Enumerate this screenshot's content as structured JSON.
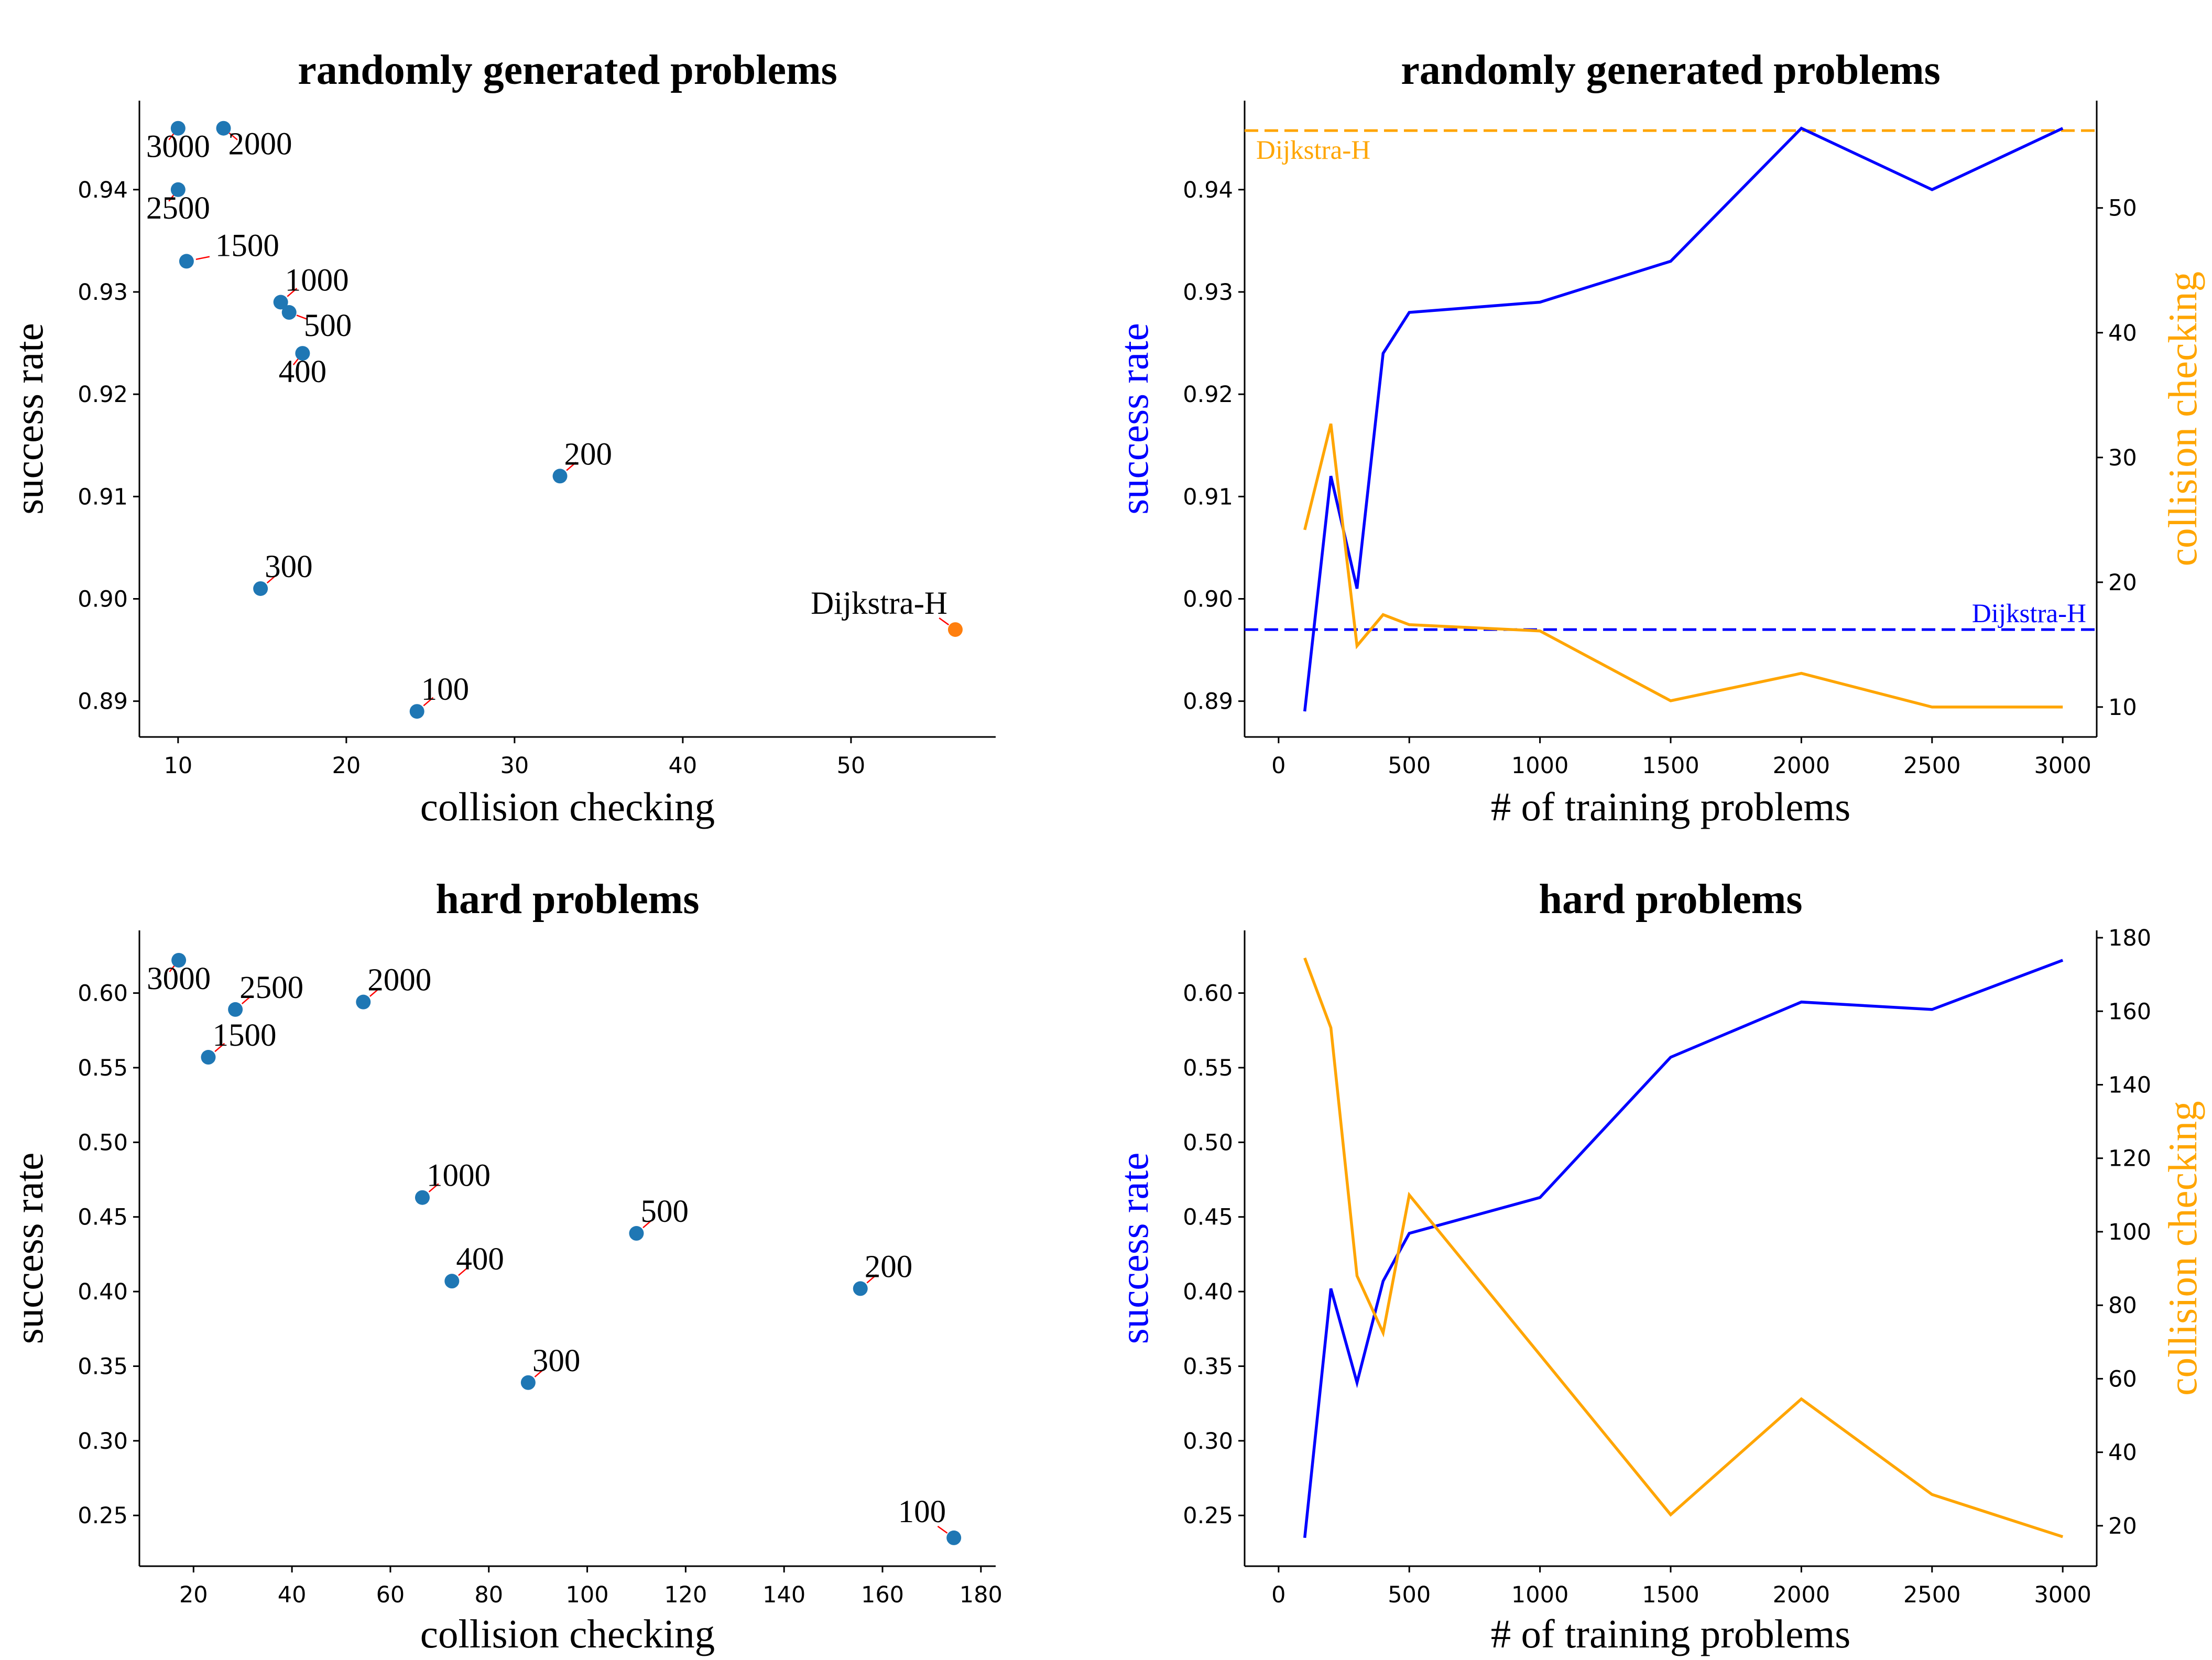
{
  "colors": {
    "point": "#1f77b4",
    "highlight": "#ff7f0e",
    "success_line": "#0000ff",
    "collision_line": "#ffa500",
    "arrow": "#ff0000"
  },
  "chart_data": [
    {
      "type": "scatter",
      "title": "randomly generated problems",
      "xlabel": "collision checking",
      "ylabel": "success rate",
      "xlim": [
        7.7,
        58.6
      ],
      "ylim": [
        0.8865,
        0.9487
      ],
      "xticks": [
        "10",
        "20",
        "30",
        "40",
        "50"
      ],
      "xtick_values": [
        10,
        20,
        30,
        40,
        50
      ],
      "yticks": [
        "0.89",
        "0.90",
        "0.91",
        "0.92",
        "0.93",
        "0.94"
      ],
      "ytick_values": [
        0.89,
        0.9,
        0.91,
        0.92,
        0.93,
        0.94
      ],
      "points": [
        {
          "label": "3000",
          "x": 10.0,
          "y": 0.946,
          "pos": "below-left"
        },
        {
          "label": "2000",
          "x": 12.7,
          "y": 0.946,
          "pos": "below-right"
        },
        {
          "label": "2500",
          "x": 10.0,
          "y": 0.94,
          "pos": "below-left"
        },
        {
          "label": "1500",
          "x": 10.5,
          "y": 0.933,
          "pos": "right"
        },
        {
          "label": "1000",
          "x": 16.1,
          "y": 0.929,
          "pos": "upper-right"
        },
        {
          "label": "500",
          "x": 16.6,
          "y": 0.928,
          "pos": "lower-right"
        },
        {
          "label": "400",
          "x": 17.4,
          "y": 0.924,
          "pos": "below-left"
        },
        {
          "label": "200",
          "x": 32.7,
          "y": 0.912,
          "pos": "upper-right"
        },
        {
          "label": "300",
          "x": 14.9,
          "y": 0.901,
          "pos": "upper-right"
        },
        {
          "label": "100",
          "x": 24.2,
          "y": 0.889,
          "pos": "upper-right"
        },
        {
          "label": "Dijkstra-H",
          "x": 56.2,
          "y": 0.897,
          "pos": "upper-left",
          "highlight": true
        }
      ]
    },
    {
      "type": "line",
      "title": "randomly generated problems",
      "xlabel": "# of training problems",
      "ylabel": "success rate",
      "y2label": "collision checking",
      "xlim": [
        -130,
        3130
      ],
      "ylim": [
        0.8865,
        0.9487
      ],
      "y2lim": [
        7.6,
        58.6
      ],
      "xticks": [
        "0",
        "500",
        "1000",
        "1500",
        "2000",
        "2500",
        "3000"
      ],
      "xtick_values": [
        0,
        500,
        1000,
        1500,
        2000,
        2500,
        3000
      ],
      "yticks": [
        "0.89",
        "0.90",
        "0.91",
        "0.92",
        "0.93",
        "0.94"
      ],
      "ytick_values": [
        0.89,
        0.9,
        0.91,
        0.92,
        0.93,
        0.94
      ],
      "y2ticks": [
        "10",
        "20",
        "30",
        "40",
        "50"
      ],
      "y2tick_values": [
        10,
        20,
        30,
        40,
        50
      ],
      "x": [
        100,
        200,
        300,
        400,
        500,
        1000,
        1500,
        2000,
        2500,
        3000
      ],
      "series": [
        {
          "name": "success rate",
          "axis": "left",
          "color": "#0000ff",
          "values": [
            0.889,
            0.912,
            0.901,
            0.924,
            0.928,
            0.929,
            0.933,
            0.946,
            0.94,
            0.946
          ]
        },
        {
          "name": "collision checking",
          "axis": "right",
          "color": "#ffa500",
          "values": [
            24.2,
            32.7,
            14.9,
            17.4,
            16.6,
            16.1,
            10.5,
            12.7,
            10.0,
            10.0
          ]
        }
      ],
      "reference_lines": [
        {
          "label": "Dijkstra-H",
          "axis": "left",
          "value": 0.897,
          "color": "#0000ff",
          "label_pos": "right"
        },
        {
          "label": "Dijkstra-H",
          "axis": "right",
          "value": 56.2,
          "color": "#ffa500",
          "label_pos": "left"
        }
      ]
    },
    {
      "type": "scatter",
      "title": "hard problems",
      "xlabel": "collision checking",
      "ylabel": "success rate",
      "xlim": [
        9,
        183
      ],
      "ylim": [
        0.216,
        0.642
      ],
      "xticks": [
        "20",
        "40",
        "60",
        "80",
        "100",
        "120",
        "140",
        "160",
        "180"
      ],
      "xtick_values": [
        20,
        40,
        60,
        80,
        100,
        120,
        140,
        160,
        180
      ],
      "yticks": [
        "0.25",
        "0.30",
        "0.35",
        "0.40",
        "0.45",
        "0.50",
        "0.55",
        "0.60"
      ],
      "ytick_values": [
        0.25,
        0.3,
        0.35,
        0.4,
        0.45,
        0.5,
        0.55,
        0.6
      ],
      "points": [
        {
          "label": "3000",
          "x": 17.0,
          "y": 0.622,
          "pos": "below-left"
        },
        {
          "label": "2500",
          "x": 28.5,
          "y": 0.589,
          "pos": "upper-right"
        },
        {
          "label": "2000",
          "x": 54.5,
          "y": 0.594,
          "pos": "upper-right"
        },
        {
          "label": "1500",
          "x": 23.0,
          "y": 0.557,
          "pos": "upper-right"
        },
        {
          "label": "1000",
          "x": 66.5,
          "y": 0.463,
          "pos": "upper-right"
        },
        {
          "label": "500",
          "x": 110.0,
          "y": 0.439,
          "pos": "upper-right"
        },
        {
          "label": "400",
          "x": 72.5,
          "y": 0.407,
          "pos": "upper-right"
        },
        {
          "label": "200",
          "x": 155.5,
          "y": 0.402,
          "pos": "upper-right"
        },
        {
          "label": "300",
          "x": 88.0,
          "y": 0.339,
          "pos": "upper-right"
        },
        {
          "label": "100",
          "x": 174.5,
          "y": 0.235,
          "pos": "upper-left"
        }
      ]
    },
    {
      "type": "line",
      "title": "hard problems",
      "xlabel": "# of training problems",
      "ylabel": "success rate",
      "y2label": "collision checking",
      "xlim": [
        -130,
        3130
      ],
      "ylim": [
        0.216,
        0.642
      ],
      "y2lim": [
        9,
        182
      ],
      "xticks": [
        "0",
        "500",
        "1000",
        "1500",
        "2000",
        "2500",
        "3000"
      ],
      "xtick_values": [
        0,
        500,
        1000,
        1500,
        2000,
        2500,
        3000
      ],
      "yticks": [
        "0.25",
        "0.30",
        "0.35",
        "0.40",
        "0.45",
        "0.50",
        "0.55",
        "0.60"
      ],
      "ytick_values": [
        0.25,
        0.3,
        0.35,
        0.4,
        0.45,
        0.5,
        0.55,
        0.6
      ],
      "y2ticks": [
        "20",
        "40",
        "60",
        "80",
        "100",
        "120",
        "140",
        "160",
        "180"
      ],
      "y2tick_values": [
        20,
        40,
        60,
        80,
        100,
        120,
        140,
        160,
        180
      ],
      "x": [
        100,
        200,
        300,
        400,
        500,
        1000,
        1500,
        2000,
        2500,
        3000
      ],
      "series": [
        {
          "name": "success rate",
          "axis": "left",
          "color": "#0000ff",
          "values": [
            0.235,
            0.402,
            0.339,
            0.407,
            0.439,
            0.463,
            0.557,
            0.594,
            0.589,
            0.622
          ]
        },
        {
          "name": "collision checking",
          "axis": "right",
          "color": "#ffa500",
          "values": [
            174.5,
            155.5,
            88.0,
            72.5,
            110.0,
            66.5,
            23.0,
            54.5,
            28.5,
            17.0
          ]
        }
      ]
    }
  ]
}
